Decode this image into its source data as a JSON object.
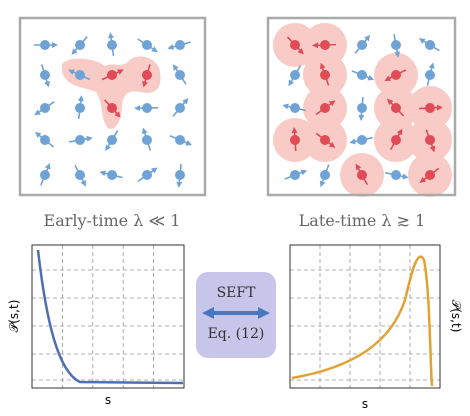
{
  "panels": [
    {
      "label": "Early-time λ ≪ 1"
    },
    {
      "label": "Late-time λ ≳ 1"
    }
  ],
  "plots": [
    {
      "ylabel": "𝒫(s,t)",
      "xlabel": "s"
    },
    {
      "ylabel": "𝒫(s,t)",
      "xlabel": "s"
    }
  ],
  "center": {
    "title": "SEFT",
    "reference": "Eq. (12)"
  }
}
